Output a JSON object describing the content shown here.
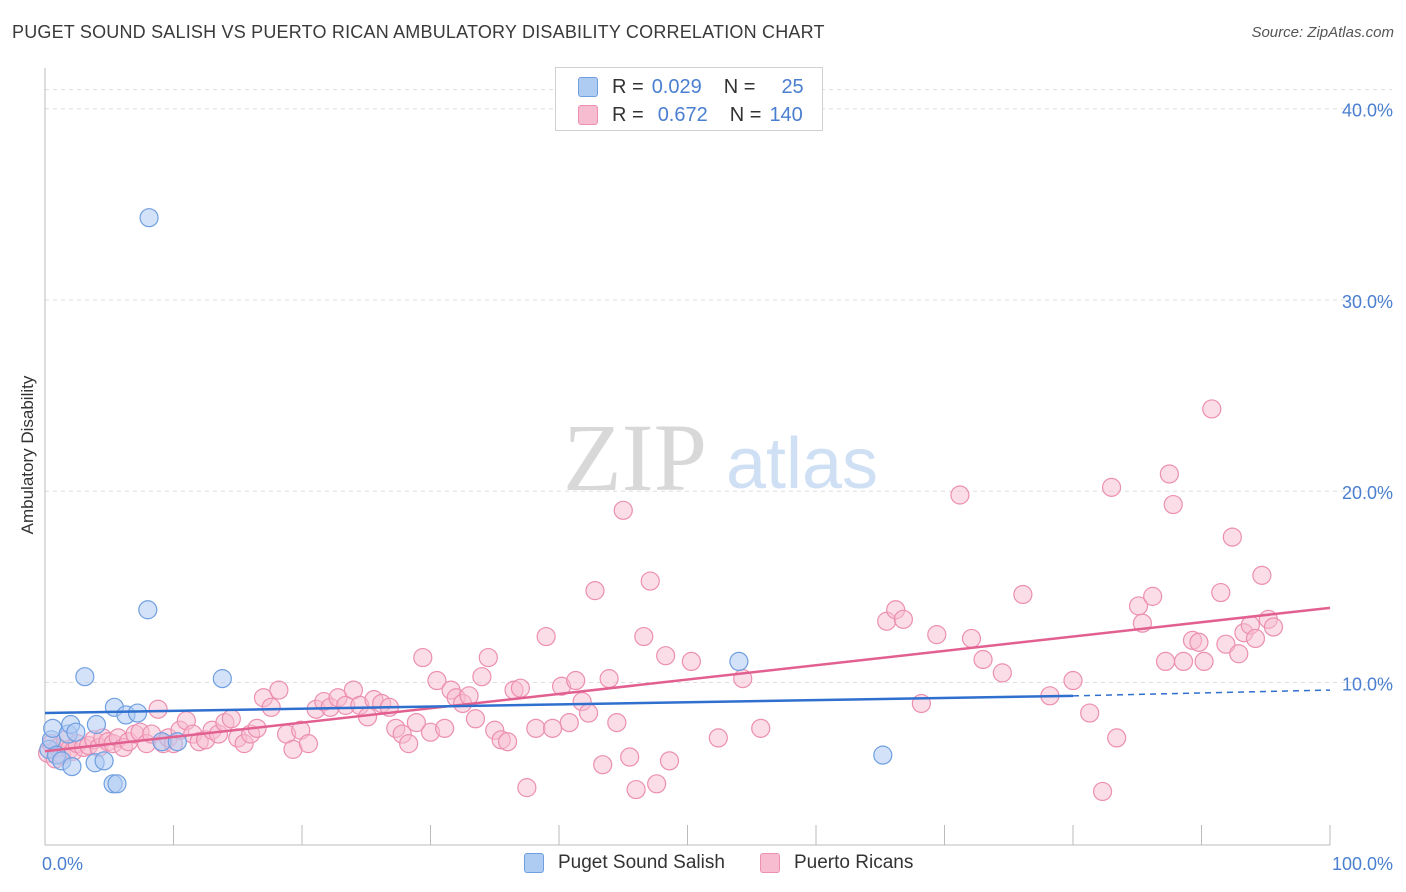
{
  "title": "PUGET SOUND SALISH VS PUERTO RICAN AMBULATORY DISABILITY CORRELATION CHART",
  "source": "Source: ZipAtlas.com",
  "watermark": {
    "zip": "ZIP",
    "atlas": "atlas"
  },
  "legend": {
    "r_label": "R =",
    "n_label": "N =",
    "series": [
      {
        "name": "Puget Sound Salish",
        "r": "0.029",
        "n": "25",
        "fill": "#aecbf2",
        "stroke": "#6f9fe0"
      },
      {
        "name": "Puerto Ricans",
        "r": "0.672",
        "n": "140",
        "fill": "#f7bcd0",
        "stroke": "#ec8fb0"
      }
    ]
  },
  "colors": {
    "blue_line": "#2f6fce",
    "pink_line": "#e2608f",
    "tick_text": "#4a7fd0",
    "grid": "#dddddd"
  },
  "chart_data": {
    "type": "scatter",
    "title": "PUGET SOUND SALISH VS PUERTO RICAN AMBULATORY DISABILITY CORRELATION CHART",
    "xlabel": "",
    "ylabel": "Ambulatory Disability",
    "xlim": [
      0,
      100
    ],
    "ylim": [
      1.5,
      41.5
    ],
    "x_tick_labels": [
      "0.0%",
      "100.0%"
    ],
    "y_ticks": [
      10,
      20,
      30,
      40
    ],
    "y_tick_labels": [
      "10.0%",
      "20.0%",
      "30.0%",
      "40.0%"
    ],
    "grid": "horizontal dashed",
    "legend_position": "top-center",
    "series": [
      {
        "name": "Puget Sound Salish",
        "r": 0.029,
        "n": 25,
        "trend": {
          "x": [
            0,
            80
          ],
          "y": [
            8.4,
            9.3
          ],
          "dashed_extension": {
            "x": [
              80,
              100
            ],
            "y": [
              9.3,
              9.6
            ]
          }
        },
        "points": [
          [
            0.3,
            6.5
          ],
          [
            0.5,
            7.0
          ],
          [
            0.6,
            7.6
          ],
          [
            0.9,
            6.2
          ],
          [
            1.3,
            5.9
          ],
          [
            1.8,
            7.3
          ],
          [
            2.0,
            7.8
          ],
          [
            2.1,
            5.6
          ],
          [
            2.4,
            7.4
          ],
          [
            3.1,
            10.3
          ],
          [
            4.0,
            7.8
          ],
          [
            3.9,
            5.8
          ],
          [
            4.6,
            5.9
          ],
          [
            5.3,
            4.7
          ],
          [
            5.6,
            4.7
          ],
          [
            5.4,
            8.7
          ],
          [
            6.3,
            8.3
          ],
          [
            7.2,
            8.4
          ],
          [
            8.1,
            34.3
          ],
          [
            8.0,
            13.8
          ],
          [
            9.1,
            6.9
          ],
          [
            10.3,
            6.9
          ],
          [
            13.8,
            10.2
          ],
          [
            54.0,
            11.1
          ],
          [
            65.2,
            6.2
          ]
        ]
      },
      {
        "name": "Puerto Ricans",
        "r": 0.672,
        "n": 140,
        "trend": {
          "x": [
            0,
            100
          ],
          "y": [
            6.4,
            13.9
          ]
        },
        "points": [
          [
            0.2,
            6.3
          ],
          [
            0.5,
            6.8
          ],
          [
            0.8,
            6.0
          ],
          [
            1.0,
            6.6
          ],
          [
            1.3,
            6.2
          ],
          [
            1.6,
            7.0
          ],
          [
            1.9,
            6.5
          ],
          [
            2.2,
            6.4
          ],
          [
            2.5,
            6.8
          ],
          [
            3.0,
            6.6
          ],
          [
            3.4,
            6.7
          ],
          [
            3.8,
            7.0
          ],
          [
            4.2,
            6.6
          ],
          [
            4.5,
            7.1
          ],
          [
            4.9,
            6.9
          ],
          [
            5.3,
            6.8
          ],
          [
            5.7,
            7.1
          ],
          [
            6.1,
            6.6
          ],
          [
            6.5,
            6.9
          ],
          [
            7.0,
            7.3
          ],
          [
            7.4,
            7.4
          ],
          [
            7.9,
            6.8
          ],
          [
            8.3,
            7.3
          ],
          [
            8.8,
            8.6
          ],
          [
            9.2,
            6.8
          ],
          [
            9.6,
            7.1
          ],
          [
            10.0,
            6.8
          ],
          [
            10.5,
            7.5
          ],
          [
            11.0,
            8.0
          ],
          [
            11.5,
            7.3
          ],
          [
            12.0,
            6.9
          ],
          [
            12.5,
            7.0
          ],
          [
            13.0,
            7.5
          ],
          [
            13.5,
            7.3
          ],
          [
            14.0,
            7.9
          ],
          [
            14.5,
            8.1
          ],
          [
            15.0,
            7.1
          ],
          [
            15.5,
            6.8
          ],
          [
            16.0,
            7.3
          ],
          [
            16.5,
            7.6
          ],
          [
            17.0,
            9.2
          ],
          [
            17.6,
            8.7
          ],
          [
            18.2,
            9.6
          ],
          [
            18.8,
            7.3
          ],
          [
            19.3,
            6.5
          ],
          [
            19.9,
            7.5
          ],
          [
            20.5,
            6.8
          ],
          [
            21.1,
            8.6
          ],
          [
            21.7,
            9.0
          ],
          [
            22.2,
            8.7
          ],
          [
            22.8,
            9.2
          ],
          [
            23.4,
            8.8
          ],
          [
            24.0,
            9.6
          ],
          [
            24.5,
            8.8
          ],
          [
            25.1,
            8.2
          ],
          [
            25.6,
            9.1
          ],
          [
            26.2,
            8.9
          ],
          [
            26.8,
            8.7
          ],
          [
            27.3,
            7.6
          ],
          [
            27.8,
            7.3
          ],
          [
            28.3,
            6.8
          ],
          [
            28.9,
            7.9
          ],
          [
            29.4,
            11.3
          ],
          [
            30.0,
            7.4
          ],
          [
            30.5,
            10.1
          ],
          [
            31.1,
            7.6
          ],
          [
            31.6,
            9.6
          ],
          [
            32.0,
            9.2
          ],
          [
            32.5,
            8.9
          ],
          [
            33.0,
            9.3
          ],
          [
            33.5,
            8.1
          ],
          [
            34.0,
            10.3
          ],
          [
            34.5,
            11.3
          ],
          [
            35.0,
            7.5
          ],
          [
            35.5,
            7.0
          ],
          [
            36.0,
            6.9
          ],
          [
            36.5,
            9.6
          ],
          [
            37.0,
            9.7
          ],
          [
            37.5,
            4.5
          ],
          [
            38.2,
            7.6
          ],
          [
            39.0,
            12.4
          ],
          [
            39.5,
            7.6
          ],
          [
            40.2,
            9.8
          ],
          [
            40.8,
            7.9
          ],
          [
            41.3,
            10.1
          ],
          [
            41.8,
            9.0
          ],
          [
            42.3,
            8.4
          ],
          [
            42.8,
            14.8
          ],
          [
            43.4,
            5.7
          ],
          [
            43.9,
            10.2
          ],
          [
            44.5,
            7.9
          ],
          [
            45.0,
            19.0
          ],
          [
            45.5,
            6.1
          ],
          [
            46.0,
            4.4
          ],
          [
            46.6,
            12.4
          ],
          [
            47.1,
            15.3
          ],
          [
            47.6,
            4.7
          ],
          [
            48.3,
            11.4
          ],
          [
            48.6,
            5.9
          ],
          [
            50.3,
            11.1
          ],
          [
            52.4,
            7.1
          ],
          [
            54.3,
            10.2
          ],
          [
            55.7,
            7.6
          ],
          [
            65.5,
            13.2
          ],
          [
            66.2,
            13.8
          ],
          [
            66.8,
            13.3
          ],
          [
            68.2,
            8.9
          ],
          [
            69.4,
            12.5
          ],
          [
            71.2,
            19.8
          ],
          [
            72.1,
            12.3
          ],
          [
            73.0,
            11.2
          ],
          [
            74.5,
            10.5
          ],
          [
            76.1,
            14.6
          ],
          [
            78.2,
            9.3
          ],
          [
            80.0,
            10.1
          ],
          [
            81.3,
            8.4
          ],
          [
            83.0,
            20.2
          ],
          [
            83.4,
            7.1
          ],
          [
            82.3,
            4.3
          ],
          [
            85.1,
            14.0
          ],
          [
            85.4,
            13.1
          ],
          [
            86.2,
            14.5
          ],
          [
            87.2,
            11.1
          ],
          [
            87.5,
            20.9
          ],
          [
            87.8,
            19.3
          ],
          [
            88.6,
            11.1
          ],
          [
            89.3,
            12.2
          ],
          [
            89.8,
            12.1
          ],
          [
            90.2,
            11.1
          ],
          [
            90.8,
            24.3
          ],
          [
            91.5,
            14.7
          ],
          [
            91.9,
            12.0
          ],
          [
            92.4,
            17.6
          ],
          [
            92.9,
            11.5
          ],
          [
            93.3,
            12.6
          ],
          [
            93.8,
            13.0
          ],
          [
            94.2,
            12.3
          ],
          [
            94.7,
            15.6
          ],
          [
            95.2,
            13.3
          ],
          [
            95.6,
            12.9
          ]
        ]
      }
    ]
  }
}
